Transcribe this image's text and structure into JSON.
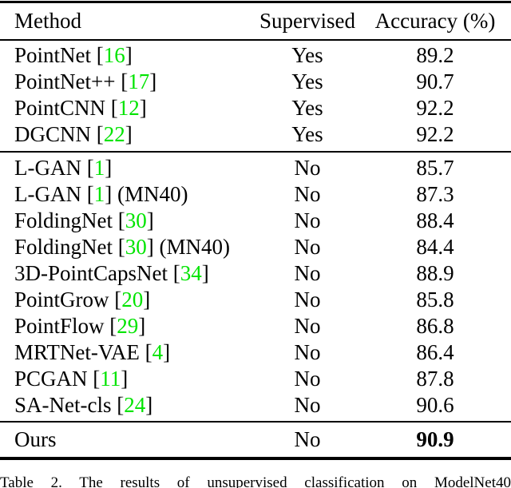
{
  "table": {
    "columns": [
      "Method",
      "Supervised",
      "Accuracy (%)"
    ],
    "groups": [
      {
        "name": "supervised-methods",
        "rows": [
          {
            "method": "PointNet",
            "cite": "16",
            "suffix": "",
            "supervised": "Yes",
            "accuracy": "89.2"
          },
          {
            "method": "PointNet++",
            "cite": "17",
            "suffix": "",
            "supervised": "Yes",
            "accuracy": "90.7"
          },
          {
            "method": "PointCNN",
            "cite": "12",
            "suffix": "",
            "supervised": "Yes",
            "accuracy": "92.2"
          },
          {
            "method": "DGCNN",
            "cite": "22",
            "suffix": "",
            "supervised": "Yes",
            "accuracy": "92.2"
          }
        ]
      },
      {
        "name": "unsupervised-methods",
        "rows": [
          {
            "method": "L-GAN",
            "cite": "1",
            "suffix": "",
            "supervised": "No",
            "accuracy": "85.7"
          },
          {
            "method": "L-GAN",
            "cite": "1",
            "suffix": " (MN40)",
            "supervised": "No",
            "accuracy": "87.3"
          },
          {
            "method": "FoldingNet",
            "cite": "30",
            "suffix": "",
            "supervised": "No",
            "accuracy": "88.4"
          },
          {
            "method": "FoldingNet",
            "cite": "30",
            "suffix": " (MN40)",
            "supervised": "No",
            "accuracy": "84.4"
          },
          {
            "method": "3D-PointCapsNet",
            "cite": "34",
            "suffix": "",
            "supervised": "No",
            "accuracy": "88.9"
          },
          {
            "method": "PointGrow",
            "cite": "20",
            "suffix": "",
            "supervised": "No",
            "accuracy": "85.8"
          },
          {
            "method": "PointFlow",
            "cite": "29",
            "suffix": "",
            "supervised": "No",
            "accuracy": "86.8"
          },
          {
            "method": "MRTNet-VAE",
            "cite": "4",
            "suffix": "",
            "supervised": "No",
            "accuracy": "86.4"
          },
          {
            "method": "PCGAN",
            "cite": "11",
            "suffix": "",
            "supervised": "No",
            "accuracy": "87.8"
          },
          {
            "method": "SA-Net-cls",
            "cite": "24",
            "suffix": "",
            "supervised": "No",
            "accuracy": "90.6"
          }
        ]
      },
      {
        "name": "ours",
        "rows": [
          {
            "method": "Ours",
            "cite": "",
            "suffix": "",
            "supervised": "No",
            "accuracy": "90.9",
            "bold_accuracy": true
          }
        ]
      }
    ]
  },
  "caption": "Table 2. The results of unsupervised classification on ModelNet40",
  "colors": {
    "citation_green": "#00e400",
    "text": "#000000",
    "rule": "#000000"
  }
}
